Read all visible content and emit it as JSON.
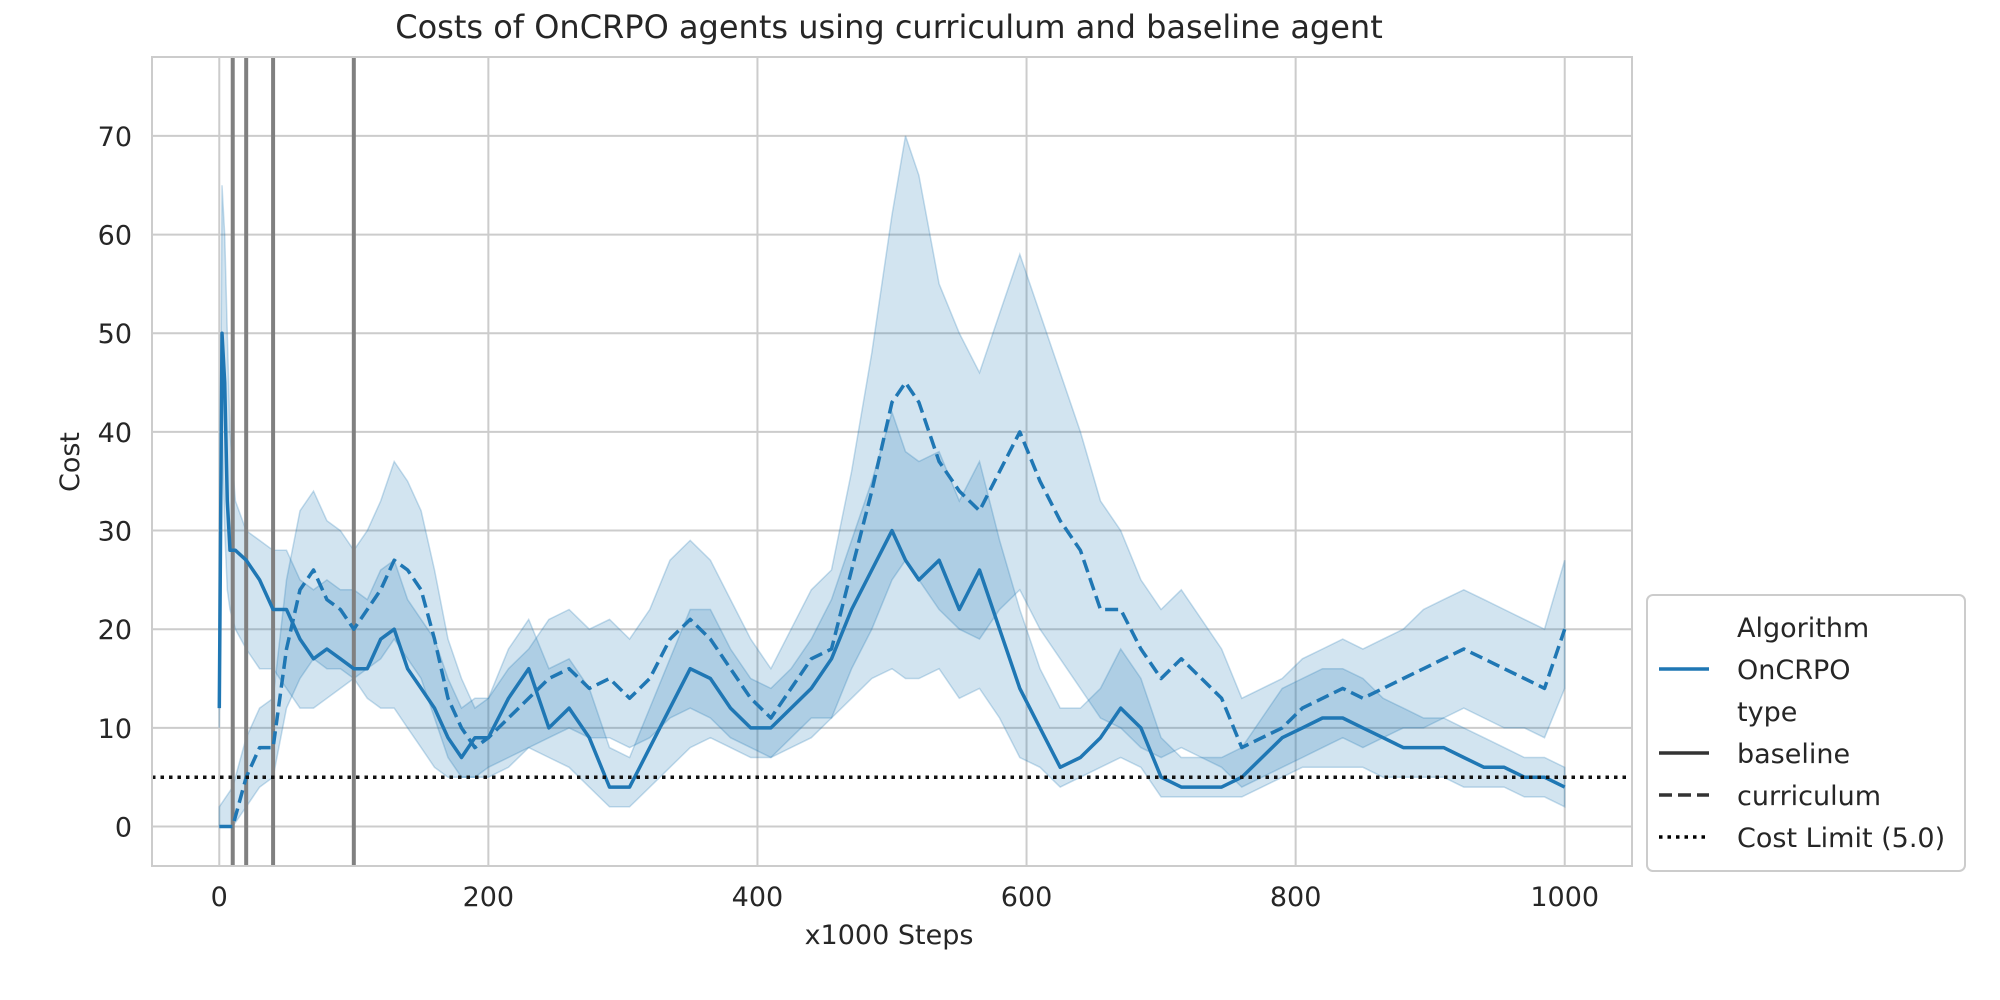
{
  "chart_data": {
    "type": "line",
    "title": "Costs of OnCRPO agents using curriculum and baseline agent",
    "xlabel": "x1000 Steps",
    "ylabel": "Cost",
    "xlim": [
      -50,
      1050
    ],
    "ylim": [
      -4,
      78
    ],
    "xticks": [
      0,
      200,
      400,
      600,
      800,
      1000
    ],
    "yticks": [
      0,
      10,
      20,
      30,
      40,
      50,
      60,
      70
    ],
    "grid": true,
    "legend_position": "lower-right, outside plot",
    "legend": {
      "entries": [
        {
          "label": "Algorithm",
          "style": "header"
        },
        {
          "label": "OnCRPO",
          "style": "solid",
          "color": "#1f77b4"
        },
        {
          "label": "type",
          "style": "header"
        },
        {
          "label": "baseline",
          "style": "solid",
          "color": "#333333"
        },
        {
          "label": "curriculum",
          "style": "dashed",
          "color": "#333333"
        },
        {
          "label": "Cost Limit (5.0)",
          "style": "dotted",
          "color": "#000000"
        }
      ]
    },
    "cost_limit": 5.0,
    "curriculum_stage_lines_x": [
      10,
      20,
      40,
      100
    ],
    "series": [
      {
        "name": "baseline",
        "algorithm": "OnCRPO",
        "style": "solid",
        "color": "#1f77b4",
        "x": [
          0,
          2,
          4,
          6,
          8,
          12,
          20,
          30,
          40,
          50,
          60,
          70,
          80,
          90,
          100,
          110,
          120,
          130,
          140,
          150,
          160,
          170,
          180,
          190,
          200,
          215,
          230,
          245,
          260,
          275,
          290,
          305,
          320,
          335,
          350,
          365,
          380,
          395,
          410,
          425,
          440,
          455,
          470,
          485,
          500,
          510,
          520,
          535,
          550,
          565,
          580,
          595,
          610,
          625,
          640,
          655,
          670,
          685,
          700,
          715,
          730,
          745,
          760,
          775,
          790,
          805,
          820,
          835,
          850,
          865,
          880,
          895,
          910,
          925,
          940,
          955,
          970,
          985,
          1000
        ],
        "y": [
          12,
          50,
          45,
          33,
          28,
          28,
          27,
          25,
          22,
          22,
          19,
          17,
          18,
          17,
          16,
          16,
          19,
          20,
          16,
          14,
          12,
          9,
          7,
          9,
          9,
          13,
          16,
          10,
          12,
          9,
          4,
          4,
          8,
          12,
          16,
          15,
          12,
          10,
          10,
          12,
          14,
          17,
          22,
          26,
          30,
          27,
          25,
          27,
          22,
          26,
          20,
          14,
          10,
          6,
          7,
          9,
          12,
          10,
          5,
          4,
          4,
          4,
          5,
          7,
          9,
          10,
          11,
          11,
          10,
          9,
          8,
          8,
          8,
          7,
          6,
          6,
          5,
          5,
          4
        ],
        "band_lower": [
          10,
          40,
          30,
          24,
          22,
          20,
          18,
          16,
          16,
          14,
          12,
          12,
          13,
          14,
          15,
          13,
          12,
          12,
          10,
          8,
          6,
          5,
          5,
          5,
          6,
          7,
          8,
          7,
          6,
          4,
          2,
          2,
          4,
          6,
          8,
          9,
          8,
          7,
          7,
          8,
          9,
          11,
          13,
          15,
          16,
          15,
          15,
          16,
          13,
          14,
          11,
          7,
          6,
          4,
          5,
          6,
          7,
          6,
          3,
          3,
          3,
          3,
          3,
          4,
          5,
          6,
          6,
          6,
          6,
          5,
          5,
          5,
          5,
          4,
          4,
          4,
          3,
          3,
          2
        ],
        "band_upper": [
          15,
          65,
          60,
          50,
          40,
          33,
          30,
          29,
          28,
          28,
          25,
          24,
          25,
          24,
          24,
          23,
          26,
          27,
          23,
          21,
          19,
          15,
          12,
          13,
          13,
          18,
          21,
          16,
          17,
          14,
          8,
          7,
          12,
          17,
          22,
          22,
          18,
          15,
          14,
          16,
          19,
          23,
          29,
          35,
          42,
          38,
          37,
          38,
          33,
          37,
          29,
          22,
          16,
          12,
          12,
          14,
          18,
          15,
          9,
          7,
          7,
          7,
          8,
          11,
          14,
          15,
          16,
          16,
          15,
          13,
          12,
          11,
          11,
          10,
          9,
          8,
          7,
          7,
          6
        ]
      },
      {
        "name": "curriculum",
        "algorithm": "OnCRPO",
        "style": "dashed",
        "color": "#1f77b4",
        "x": [
          0,
          10,
          20,
          30,
          40,
          50,
          60,
          70,
          80,
          90,
          100,
          110,
          120,
          130,
          140,
          150,
          160,
          170,
          180,
          190,
          200,
          215,
          230,
          245,
          260,
          275,
          290,
          305,
          320,
          335,
          350,
          365,
          380,
          395,
          410,
          425,
          440,
          455,
          470,
          485,
          500,
          510,
          520,
          535,
          550,
          565,
          580,
          595,
          610,
          625,
          640,
          655,
          670,
          685,
          700,
          715,
          730,
          745,
          760,
          775,
          790,
          805,
          820,
          835,
          850,
          865,
          880,
          895,
          910,
          925,
          940,
          955,
          970,
          985,
          1000
        ],
        "y": [
          0,
          0,
          5,
          8,
          8,
          18,
          24,
          26,
          23,
          22,
          20,
          22,
          24,
          27,
          26,
          24,
          19,
          13,
          10,
          8,
          9,
          11,
          13,
          15,
          16,
          14,
          15,
          13,
          15,
          19,
          21,
          19,
          16,
          13,
          11,
          14,
          17,
          18,
          26,
          34,
          43,
          45,
          43,
          37,
          34,
          32,
          36,
          40,
          35,
          31,
          28,
          22,
          22,
          18,
          15,
          17,
          15,
          13,
          8,
          9,
          10,
          12,
          13,
          14,
          13,
          14,
          15,
          16,
          17,
          18,
          17,
          16,
          15,
          14,
          20
        ],
        "band_lower": [
          0,
          0,
          2,
          4,
          5,
          12,
          15,
          17,
          16,
          16,
          15,
          16,
          17,
          19,
          17,
          15,
          11,
          7,
          5,
          5,
          5,
          6,
          8,
          9,
          10,
          9,
          9,
          8,
          9,
          11,
          12,
          11,
          9,
          8,
          7,
          9,
          11,
          11,
          16,
          20,
          25,
          27,
          25,
          22,
          20,
          19,
          22,
          24,
          20,
          17,
          14,
          11,
          10,
          8,
          7,
          8,
          7,
          6,
          4,
          5,
          6,
          7,
          8,
          9,
          8,
          9,
          10,
          10,
          11,
          12,
          11,
          10,
          10,
          9,
          14
        ],
        "band_upper": [
          2,
          4,
          9,
          12,
          13,
          25,
          32,
          34,
          31,
          30,
          28,
          30,
          33,
          37,
          35,
          32,
          26,
          19,
          15,
          12,
          13,
          16,
          18,
          21,
          22,
          20,
          21,
          19,
          22,
          27,
          29,
          27,
          23,
          19,
          16,
          20,
          24,
          26,
          36,
          48,
          62,
          70,
          66,
          55,
          50,
          46,
          52,
          58,
          52,
          46,
          40,
          33,
          30,
          25,
          22,
          24,
          21,
          18,
          13,
          14,
          15,
          17,
          18,
          19,
          18,
          19,
          20,
          22,
          23,
          24,
          23,
          22,
          21,
          20,
          27
        ]
      }
    ]
  }
}
